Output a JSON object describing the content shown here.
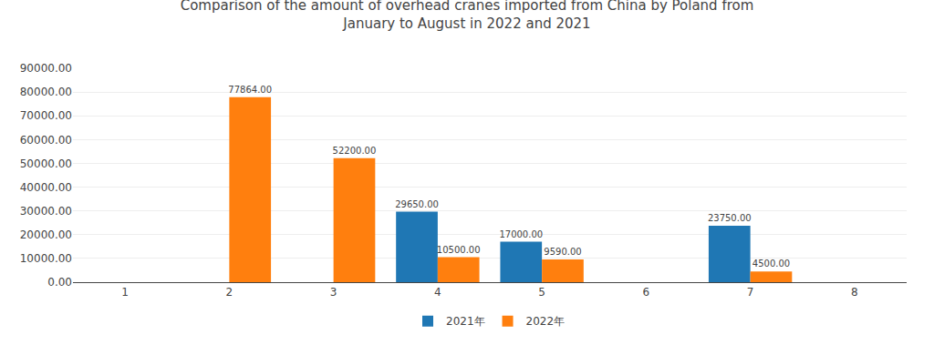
{
  "chart_data": {
    "type": "bar",
    "title": "Comparison of the amount of overhead cranes imported from China by Poland from\nJanuary to August in 2022 and 2021",
    "categories": [
      1,
      2,
      3,
      4,
      5,
      6,
      7,
      8
    ],
    "series": [
      {
        "name": "2021年",
        "values": [
          0,
          0,
          0,
          29650.0,
          17000.0,
          0,
          23750.0,
          0
        ],
        "value_labels": [
          null,
          null,
          null,
          "29650.00",
          "17000.00",
          null,
          "23750.00",
          null
        ]
      },
      {
        "name": "2022年",
        "values": [
          0,
          77864.0,
          52200.0,
          10500.0,
          9590.0,
          0,
          4500.0,
          0
        ],
        "value_labels": [
          null,
          "77864.00",
          "52200.00",
          "10500.00",
          "9590.00",
          null,
          "4500.00",
          null
        ]
      }
    ],
    "ylim": [
      0,
      90000
    ],
    "yticks": [
      {
        "value": 0,
        "label": "0.00"
      },
      {
        "value": 10000,
        "label": "10000.00"
      },
      {
        "value": 20000,
        "label": "20000.00"
      },
      {
        "value": 30000,
        "label": "30000.00"
      },
      {
        "value": 40000,
        "label": "40000.00"
      },
      {
        "value": 50000,
        "label": "50000.00"
      },
      {
        "value": 60000,
        "label": "60000.00"
      },
      {
        "value": 70000,
        "label": "70000.00"
      },
      {
        "value": 80000,
        "label": "80000.00"
      },
      {
        "value": 90000,
        "label": "90000.00"
      }
    ],
    "grid": true,
    "legend": "bottom",
    "data_labels": true
  }
}
